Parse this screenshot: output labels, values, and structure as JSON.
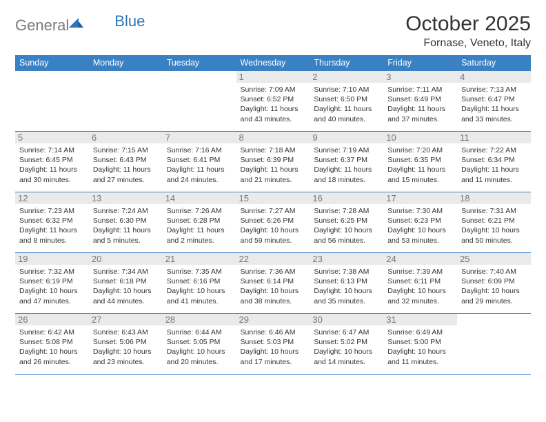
{
  "logo": {
    "general": "General",
    "blue": "Blue"
  },
  "title": "October 2025",
  "location": "Fornase, Veneto, Italy",
  "colors": {
    "header_bg": "#3a81c4",
    "header_fg": "#ffffff",
    "rule": "#3a81c4",
    "daynum_bg": "#eaeaea",
    "daynum_fg": "#777777",
    "text": "#333333",
    "logo_gray": "#7a7a7a",
    "logo_blue": "#2d75b6",
    "background": "#ffffff"
  },
  "daysOfWeek": [
    "Sunday",
    "Monday",
    "Tuesday",
    "Wednesday",
    "Thursday",
    "Friday",
    "Saturday"
  ],
  "weeks": [
    [
      null,
      null,
      null,
      {
        "n": "1",
        "sunrise": "7:09 AM",
        "sunset": "6:52 PM",
        "dl": "11 hours and 43 minutes."
      },
      {
        "n": "2",
        "sunrise": "7:10 AM",
        "sunset": "6:50 PM",
        "dl": "11 hours and 40 minutes."
      },
      {
        "n": "3",
        "sunrise": "7:11 AM",
        "sunset": "6:49 PM",
        "dl": "11 hours and 37 minutes."
      },
      {
        "n": "4",
        "sunrise": "7:13 AM",
        "sunset": "6:47 PM",
        "dl": "11 hours and 33 minutes."
      }
    ],
    [
      {
        "n": "5",
        "sunrise": "7:14 AM",
        "sunset": "6:45 PM",
        "dl": "11 hours and 30 minutes."
      },
      {
        "n": "6",
        "sunrise": "7:15 AM",
        "sunset": "6:43 PM",
        "dl": "11 hours and 27 minutes."
      },
      {
        "n": "7",
        "sunrise": "7:16 AM",
        "sunset": "6:41 PM",
        "dl": "11 hours and 24 minutes."
      },
      {
        "n": "8",
        "sunrise": "7:18 AM",
        "sunset": "6:39 PM",
        "dl": "11 hours and 21 minutes."
      },
      {
        "n": "9",
        "sunrise": "7:19 AM",
        "sunset": "6:37 PM",
        "dl": "11 hours and 18 minutes."
      },
      {
        "n": "10",
        "sunrise": "7:20 AM",
        "sunset": "6:35 PM",
        "dl": "11 hours and 15 minutes."
      },
      {
        "n": "11",
        "sunrise": "7:22 AM",
        "sunset": "6:34 PM",
        "dl": "11 hours and 11 minutes."
      }
    ],
    [
      {
        "n": "12",
        "sunrise": "7:23 AM",
        "sunset": "6:32 PM",
        "dl": "11 hours and 8 minutes."
      },
      {
        "n": "13",
        "sunrise": "7:24 AM",
        "sunset": "6:30 PM",
        "dl": "11 hours and 5 minutes."
      },
      {
        "n": "14",
        "sunrise": "7:26 AM",
        "sunset": "6:28 PM",
        "dl": "11 hours and 2 minutes."
      },
      {
        "n": "15",
        "sunrise": "7:27 AM",
        "sunset": "6:26 PM",
        "dl": "10 hours and 59 minutes."
      },
      {
        "n": "16",
        "sunrise": "7:28 AM",
        "sunset": "6:25 PM",
        "dl": "10 hours and 56 minutes."
      },
      {
        "n": "17",
        "sunrise": "7:30 AM",
        "sunset": "6:23 PM",
        "dl": "10 hours and 53 minutes."
      },
      {
        "n": "18",
        "sunrise": "7:31 AM",
        "sunset": "6:21 PM",
        "dl": "10 hours and 50 minutes."
      }
    ],
    [
      {
        "n": "19",
        "sunrise": "7:32 AM",
        "sunset": "6:19 PM",
        "dl": "10 hours and 47 minutes."
      },
      {
        "n": "20",
        "sunrise": "7:34 AM",
        "sunset": "6:18 PM",
        "dl": "10 hours and 44 minutes."
      },
      {
        "n": "21",
        "sunrise": "7:35 AM",
        "sunset": "6:16 PM",
        "dl": "10 hours and 41 minutes."
      },
      {
        "n": "22",
        "sunrise": "7:36 AM",
        "sunset": "6:14 PM",
        "dl": "10 hours and 38 minutes."
      },
      {
        "n": "23",
        "sunrise": "7:38 AM",
        "sunset": "6:13 PM",
        "dl": "10 hours and 35 minutes."
      },
      {
        "n": "24",
        "sunrise": "7:39 AM",
        "sunset": "6:11 PM",
        "dl": "10 hours and 32 minutes."
      },
      {
        "n": "25",
        "sunrise": "7:40 AM",
        "sunset": "6:09 PM",
        "dl": "10 hours and 29 minutes."
      }
    ],
    [
      {
        "n": "26",
        "sunrise": "6:42 AM",
        "sunset": "5:08 PM",
        "dl": "10 hours and 26 minutes."
      },
      {
        "n": "27",
        "sunrise": "6:43 AM",
        "sunset": "5:06 PM",
        "dl": "10 hours and 23 minutes."
      },
      {
        "n": "28",
        "sunrise": "6:44 AM",
        "sunset": "5:05 PM",
        "dl": "10 hours and 20 minutes."
      },
      {
        "n": "29",
        "sunrise": "6:46 AM",
        "sunset": "5:03 PM",
        "dl": "10 hours and 17 minutes."
      },
      {
        "n": "30",
        "sunrise": "6:47 AM",
        "sunset": "5:02 PM",
        "dl": "10 hours and 14 minutes."
      },
      {
        "n": "31",
        "sunrise": "6:49 AM",
        "sunset": "5:00 PM",
        "dl": "10 hours and 11 minutes."
      },
      null
    ]
  ],
  "labels": {
    "sunrise": "Sunrise: ",
    "sunset": "Sunset: ",
    "daylight": "Daylight: "
  }
}
